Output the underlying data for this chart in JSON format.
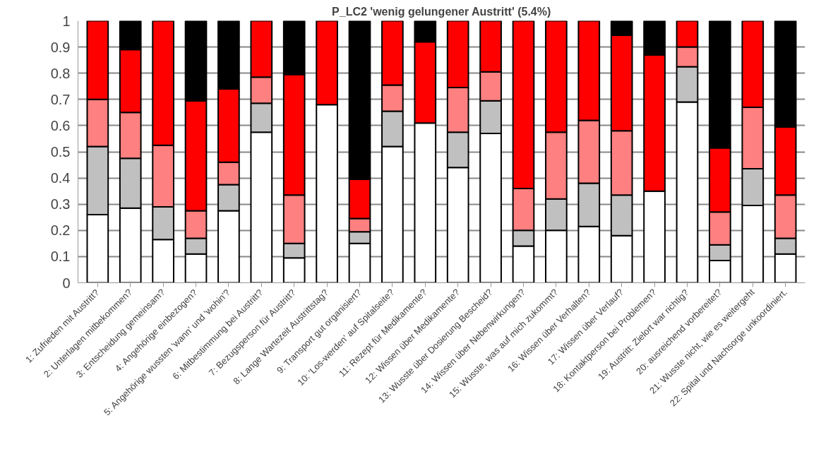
{
  "chart_data": {
    "type": "bar",
    "title": "P_LC2 'wenig gelungener Austritt' (5.4%)",
    "stacked": true,
    "categories": [
      "1: Zufrieden mit Austritt?",
      "2: Unterlagen mitbekommen?",
      "3: Entscheidung gemeinsam?",
      "4: Angehörige einbezogen?",
      "5: Angehörige wussten 'wann' und 'wohin'?",
      "6: Mitbestimmung bei Austritt?",
      "7: Bezugsperson für Austritt?",
      "8: Lange Wartezeit Austrittstag?",
      "9: Transport gut organisiert?",
      "10: 'Los-werden' auf Spitalseite?",
      "11: Rezept für Medikamente?",
      "12: Wissen über Medikamente?",
      "13: Wusste über Dosierung Bescheid?",
      "14: Wissen über Nebenwirkungen?",
      "15: Wusste, was auf mich zukommt?",
      "16: Wissen über Verhalten?",
      "17: Wissen über Verlauf?",
      "18: Kontaktperson bei Problemen?",
      "19: Austritt: Zielort war richtig?",
      "20: ausreichend vorbereitet?",
      "21: Wusste nicht, wie es weitergeht",
      "22: Spital und Nachsorge unkoordiniert."
    ],
    "series": [
      {
        "color": "#ffffff",
        "values": [
          0.26,
          0.285,
          0.165,
          0.11,
          0.275,
          0.575,
          0.095,
          0.68,
          0.15,
          0.52,
          0.61,
          0.44,
          0.57,
          0.14,
          0.2,
          0.215,
          0.18,
          0.35,
          0.69,
          0.085,
          0.295,
          0.11
        ]
      },
      {
        "color": "#c0c0c0",
        "values": [
          0.26,
          0.19,
          0.125,
          0.06,
          0.1,
          0.11,
          0.055,
          0,
          0.045,
          0.135,
          0,
          0.135,
          0.125,
          0.06,
          0.12,
          0.165,
          0.155,
          0,
          0.135,
          0.06,
          0.14,
          0.06
        ]
      },
      {
        "color": "#ff8080",
        "values": [
          0.18,
          0.175,
          0.235,
          0.105,
          0.085,
          0.1,
          0.185,
          0,
          0.05,
          0.1,
          0,
          0.17,
          0.11,
          0.16,
          0.255,
          0.24,
          0.245,
          0,
          0.075,
          0.125,
          0.235,
          0.165
        ]
      },
      {
        "color": "#ff0000",
        "values": [
          0.3,
          0.24,
          0.475,
          0.42,
          0.28,
          0.215,
          0.46,
          0.32,
          0.15,
          0.245,
          0.31,
          0.255,
          0.195,
          0.64,
          0.425,
          0.38,
          0.365,
          0.52,
          0.1,
          0.245,
          0.33,
          0.26
        ]
      },
      {
        "color": "#000000",
        "values": [
          0,
          0.11,
          0,
          0.305,
          0.26,
          0,
          0.205,
          0,
          0.605,
          0,
          0.08,
          0,
          0,
          0,
          0,
          0,
          0.055,
          0.13,
          0,
          0.485,
          0,
          0.405
        ]
      }
    ],
    "ylim": [
      0,
      1
    ],
    "yticks": [
      0,
      0.1,
      0.2,
      0.3,
      0.4,
      0.5,
      0.6,
      0.7,
      0.8,
      0.9,
      1
    ],
    "grid": "y"
  }
}
